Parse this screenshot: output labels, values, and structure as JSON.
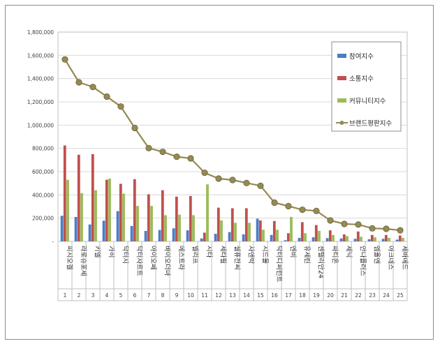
{
  "chart_data": {
    "type": "bar",
    "title": "",
    "xlabel": "",
    "ylabel": "",
    "ylim": [
      0,
      1800000
    ],
    "yticks": [
      0,
      200000,
      400000,
      600000,
      800000,
      1000000,
      1200000,
      1400000,
      1600000,
      1800000
    ],
    "ytick_labels": [
      "-",
      "200,000",
      "400,000",
      "600,000",
      "800,000",
      "1,000,000",
      "1,200,000",
      "1,400,000",
      "1,600,000",
      "1,800,000"
    ],
    "grid": true,
    "legend_position": "right",
    "index_labels": [
      "1",
      "2",
      "3",
      "4",
      "5",
      "6",
      "7",
      "8",
      "9",
      "10",
      "11",
      "12",
      "13",
      "14",
      "15",
      "16",
      "17",
      "18",
      "19",
      "20",
      "21",
      "22",
      "23",
      "24",
      "25"
    ],
    "categories": [
      "피지오겔",
      "라로슈포제",
      "키엘",
      "가히",
      "닥터지",
      "닥터자르트",
      "아이오페",
      "바이오더마",
      "에스트라",
      "벨리프",
      "시타",
      "세타필",
      "셀퓨전씨",
      "차앤박",
      "시드물",
      "닥터디퍼런트",
      "엔비",
      "유세린",
      "센텔리안24",
      "파티온",
      "제닉",
      "안나플러스",
      "엠올엔",
      "아크네스",
      "세바메드"
    ],
    "series": [
      {
        "name": "참여지수",
        "kind": "bar",
        "color": "#4a7ec4",
        "values": [
          220000,
          210000,
          145000,
          178000,
          260000,
          132000,
          90000,
          98000,
          112000,
          95000,
          25000,
          65000,
          80000,
          60000,
          195000,
          55000,
          10000,
          30000,
          35000,
          28000,
          25000,
          22000,
          18000,
          22000,
          15000
        ]
      },
      {
        "name": "소통지수",
        "kind": "bar",
        "color": "#c0504d",
        "values": [
          825000,
          745000,
          750000,
          530000,
          495000,
          535000,
          405000,
          440000,
          385000,
          390000,
          75000,
          290000,
          285000,
          285000,
          180000,
          175000,
          70000,
          165000,
          140000,
          95000,
          60000,
          85000,
          55000,
          55000,
          50000
        ]
      },
      {
        "name": "커뮤니티지수",
        "kind": "bar",
        "color": "#9bbb59",
        "values": [
          530000,
          415000,
          440000,
          540000,
          410000,
          305000,
          305000,
          225000,
          230000,
          225000,
          490000,
          180000,
          160000,
          160000,
          100000,
          100000,
          210000,
          70000,
          90000,
          55000,
          45000,
          40000,
          35000,
          30000,
          30000
        ]
      },
      {
        "name": "브랜드평판지수",
        "kind": "line",
        "color": "#948a54",
        "values": [
          1565000,
          1368000,
          1328000,
          1245000,
          1160000,
          975000,
          802000,
          770000,
          728000,
          714000,
          590000,
          540000,
          528000,
          502000,
          478000,
          333000,
          303000,
          272000,
          262000,
          180000,
          150000,
          145000,
          112000,
          108000,
          95000
        ]
      }
    ]
  }
}
